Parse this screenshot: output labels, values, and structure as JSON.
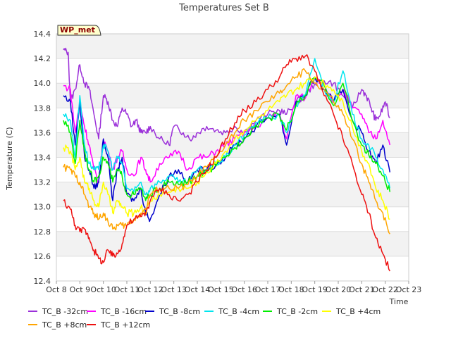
{
  "chart_data": {
    "type": "line",
    "title": "Temperatures Set B",
    "xlabel": "Time",
    "ylabel": "Temperature (C)",
    "ylim": [
      12.4,
      14.4
    ],
    "xlim": [
      8,
      23
    ],
    "yticks": [
      "12.4",
      "12.6",
      "12.8",
      "13.0",
      "13.2",
      "13.4",
      "13.6",
      "13.8",
      "14.0",
      "14.2",
      "14.4"
    ],
    "xticks": [
      "Oct 8",
      "Oct 9",
      "Oct 10",
      "Oct 11",
      "Oct 12",
      "Oct 13",
      "Oct 14",
      "Oct 15",
      "Oct 16",
      "Oct 17",
      "Oct 18",
      "Oct 19",
      "Oct 20",
      "Oct 21",
      "Oct 22",
      "Oct 23"
    ],
    "x_unit": "day of October",
    "grid": true,
    "legend_position": "bottom",
    "badge": "WP_met",
    "series": [
      {
        "name": "TC_B -32cm",
        "color": "#9b30d9",
        "x": [
          8.3,
          8.5,
          8.6,
          8.8,
          9.0,
          9.2,
          9.4,
          9.6,
          9.8,
          10.0,
          10.2,
          10.4,
          10.6,
          10.8,
          11.0,
          11.2,
          11.4,
          11.6,
          11.8,
          12.0,
          12.4,
          12.8,
          13.0,
          13.4,
          13.8,
          14.0,
          14.4,
          14.8,
          15.2,
          15.6,
          16.0,
          16.5,
          17.0,
          17.5,
          17.8,
          18.2,
          18.6,
          19.0,
          19.4,
          19.8,
          20.2,
          20.6,
          21.0,
          21.2,
          21.4,
          21.6,
          21.8,
          22.0,
          22.2
        ],
        "y": [
          14.27,
          14.25,
          13.85,
          13.95,
          14.15,
          14.0,
          13.95,
          13.75,
          13.55,
          13.9,
          13.85,
          13.7,
          13.65,
          13.8,
          13.75,
          13.65,
          13.7,
          13.6,
          13.6,
          13.65,
          13.55,
          13.5,
          13.65,
          13.6,
          13.55,
          13.6,
          13.65,
          13.62,
          13.6,
          13.65,
          13.6,
          13.7,
          13.75,
          13.78,
          13.75,
          13.85,
          13.9,
          14.0,
          14.02,
          14.0,
          13.9,
          13.8,
          13.95,
          13.9,
          13.8,
          13.7,
          13.75,
          13.85,
          13.72
        ]
      },
      {
        "name": "TC_B -16cm",
        "color": "#ff00ff",
        "x": [
          8.3,
          8.6,
          8.8,
          9.0,
          9.2,
          9.4,
          9.6,
          9.8,
          10.0,
          10.2,
          10.4,
          10.6,
          10.8,
          11.0,
          11.3,
          11.6,
          11.8,
          12.0,
          12.4,
          12.8,
          13.2,
          13.6,
          14.0,
          14.4,
          14.8,
          15.2,
          15.6,
          16.0,
          16.5,
          17.0,
          17.5,
          17.8,
          18.2,
          18.6,
          19.0,
          19.4,
          19.8,
          20.2,
          20.6,
          21.0,
          21.3,
          21.6,
          21.9,
          22.2
        ],
        "y": [
          13.98,
          13.95,
          13.6,
          13.85,
          13.65,
          13.5,
          13.3,
          13.2,
          13.55,
          13.45,
          13.3,
          13.4,
          13.45,
          13.3,
          13.25,
          13.4,
          13.3,
          13.2,
          13.35,
          13.4,
          13.45,
          13.3,
          13.4,
          13.4,
          13.45,
          13.5,
          13.55,
          13.6,
          13.65,
          13.72,
          13.75,
          13.55,
          13.9,
          13.88,
          14.05,
          14.0,
          13.85,
          13.95,
          13.8,
          13.75,
          13.6,
          13.55,
          13.7,
          13.5
        ]
      },
      {
        "name": "TC_B -8cm",
        "color": "#0000cc",
        "x": [
          8.3,
          8.6,
          8.8,
          9.0,
          9.2,
          9.4,
          9.6,
          9.8,
          10.0,
          10.2,
          10.4,
          10.6,
          10.8,
          11.0,
          11.3,
          11.6,
          11.8,
          12.0,
          12.4,
          12.8,
          13.2,
          13.6,
          14.0,
          14.4,
          14.8,
          15.2,
          15.6,
          16.0,
          16.5,
          17.0,
          17.5,
          17.8,
          18.2,
          18.6,
          19.0,
          19.4,
          19.8,
          20.2,
          20.6,
          21.0,
          21.3,
          21.6,
          21.9,
          22.2
        ],
        "y": [
          13.9,
          13.85,
          13.5,
          13.85,
          13.4,
          13.3,
          13.15,
          13.2,
          13.55,
          13.4,
          13.05,
          13.3,
          13.4,
          13.1,
          13.05,
          13.15,
          12.95,
          12.9,
          13.1,
          13.25,
          13.3,
          13.2,
          13.3,
          13.3,
          13.35,
          13.4,
          13.5,
          13.55,
          13.65,
          13.72,
          13.75,
          13.5,
          13.85,
          13.9,
          14.05,
          13.95,
          13.85,
          13.95,
          13.7,
          13.6,
          13.45,
          13.35,
          13.5,
          13.28
        ]
      },
      {
        "name": "TC_B -4cm",
        "color": "#00e5ee",
        "x": [
          8.3,
          8.6,
          8.8,
          9.0,
          9.2,
          9.4,
          9.6,
          9.8,
          10.0,
          10.2,
          10.4,
          10.6,
          10.8,
          11.0,
          11.3,
          11.6,
          11.8,
          12.0,
          12.4,
          12.8,
          13.2,
          13.6,
          14.0,
          14.4,
          14.8,
          15.2,
          15.6,
          16.0,
          16.5,
          17.0,
          17.5,
          17.8,
          18.2,
          18.6,
          19.0,
          19.4,
          19.8,
          20.2,
          20.6,
          21.0,
          21.3,
          21.6,
          21.9,
          22.2
        ],
        "y": [
          13.75,
          13.7,
          13.4,
          13.9,
          13.5,
          13.35,
          13.3,
          13.3,
          13.5,
          13.45,
          13.3,
          13.4,
          13.35,
          13.15,
          13.12,
          13.2,
          13.1,
          13.15,
          13.2,
          13.25,
          13.2,
          13.2,
          13.3,
          13.3,
          13.35,
          13.4,
          13.5,
          13.58,
          13.68,
          13.72,
          13.74,
          13.6,
          13.82,
          13.9,
          14.2,
          13.95,
          13.85,
          14.1,
          13.75,
          13.55,
          13.5,
          13.4,
          13.3,
          13.15
        ]
      },
      {
        "name": "TC_B -2cm",
        "color": "#00ee00",
        "x": [
          8.3,
          8.6,
          8.8,
          9.0,
          9.2,
          9.4,
          9.6,
          9.8,
          10.0,
          10.2,
          10.4,
          10.6,
          10.8,
          11.0,
          11.3,
          11.6,
          11.8,
          12.0,
          12.4,
          12.8,
          13.2,
          13.6,
          14.0,
          14.4,
          14.8,
          15.2,
          15.6,
          16.0,
          16.5,
          17.0,
          17.5,
          17.8,
          18.2,
          18.6,
          19.0,
          19.4,
          19.8,
          20.2,
          20.6,
          21.0,
          21.3,
          21.6,
          21.9,
          22.2
        ],
        "y": [
          13.7,
          13.6,
          13.35,
          13.7,
          13.45,
          13.3,
          13.2,
          13.25,
          13.4,
          13.35,
          13.2,
          13.3,
          13.25,
          13.1,
          13.1,
          13.15,
          13.05,
          13.1,
          13.15,
          13.2,
          13.18,
          13.2,
          13.25,
          13.28,
          13.33,
          13.4,
          13.48,
          13.56,
          13.66,
          13.72,
          13.74,
          13.62,
          13.82,
          13.9,
          14.05,
          13.98,
          13.82,
          14.0,
          13.7,
          13.5,
          13.42,
          13.35,
          13.25,
          13.12
        ]
      },
      {
        "name": "TC_B +4cm",
        "color": "#ffff00",
        "x": [
          8.3,
          8.6,
          8.8,
          9.0,
          9.2,
          9.4,
          9.6,
          9.8,
          10.0,
          10.2,
          10.4,
          10.6,
          10.8,
          11.0,
          11.3,
          11.6,
          11.8,
          12.0,
          12.4,
          12.8,
          13.2,
          13.6,
          14.0,
          14.4,
          14.8,
          15.2,
          15.6,
          16.0,
          16.5,
          17.0,
          17.5,
          17.8,
          18.2,
          18.6,
          19.0,
          19.4,
          19.8,
          20.2,
          20.6,
          21.0,
          21.3,
          21.6,
          21.9,
          22.2
        ],
        "y": [
          13.48,
          13.45,
          13.3,
          13.4,
          13.2,
          13.15,
          13.05,
          13.0,
          13.2,
          13.1,
          12.95,
          13.05,
          13.0,
          12.95,
          12.95,
          13.0,
          12.95,
          13.05,
          13.1,
          13.12,
          13.15,
          13.15,
          13.2,
          13.28,
          13.35,
          13.45,
          13.55,
          13.62,
          13.7,
          13.78,
          13.85,
          13.9,
          13.95,
          14.0,
          14.05,
          14.0,
          13.95,
          13.85,
          13.65,
          13.45,
          13.35,
          13.15,
          13.05,
          12.9
        ]
      },
      {
        "name": "TC_B +8cm",
        "color": "#ffa500",
        "x": [
          8.3,
          8.6,
          8.8,
          9.0,
          9.2,
          9.4,
          9.6,
          9.8,
          10.0,
          10.2,
          10.4,
          10.6,
          10.8,
          11.0,
          11.3,
          11.6,
          11.8,
          12.0,
          12.4,
          12.8,
          13.2,
          13.6,
          14.0,
          14.4,
          14.8,
          15.2,
          15.6,
          16.0,
          16.5,
          17.0,
          17.5,
          17.8,
          18.2,
          18.6,
          19.0,
          19.4,
          19.8,
          20.2,
          20.6,
          21.0,
          21.3,
          21.6,
          21.9,
          22.2
        ],
        "y": [
          13.32,
          13.3,
          13.25,
          13.2,
          13.1,
          13.0,
          12.95,
          12.9,
          12.95,
          12.88,
          12.82,
          12.85,
          12.85,
          12.85,
          12.9,
          12.95,
          12.98,
          13.1,
          13.15,
          13.15,
          13.15,
          13.18,
          13.25,
          13.32,
          13.4,
          13.5,
          13.6,
          13.7,
          13.78,
          13.85,
          13.92,
          13.98,
          14.05,
          14.1,
          14.0,
          13.95,
          13.85,
          13.75,
          13.55,
          13.35,
          13.2,
          13.05,
          12.95,
          12.78
        ]
      },
      {
        "name": "TC_B +12cm",
        "color": "#ee1111",
        "x": [
          8.3,
          8.6,
          8.8,
          9.0,
          9.2,
          9.4,
          9.6,
          9.8,
          10.0,
          10.2,
          10.4,
          10.6,
          10.8,
          11.0,
          11.3,
          11.6,
          11.8,
          12.0,
          12.4,
          12.8,
          13.2,
          13.6,
          14.0,
          14.4,
          14.8,
          15.2,
          15.6,
          16.0,
          16.5,
          17.0,
          17.5,
          17.8,
          18.2,
          18.6,
          19.0,
          19.4,
          19.8,
          20.2,
          20.6,
          21.0,
          21.3,
          21.6,
          21.9,
          22.2
        ],
        "y": [
          13.05,
          12.98,
          12.85,
          12.8,
          12.82,
          12.75,
          12.65,
          12.58,
          12.55,
          12.65,
          12.6,
          12.62,
          12.7,
          12.85,
          12.9,
          12.92,
          12.95,
          13.05,
          13.15,
          13.1,
          13.05,
          13.1,
          13.2,
          13.3,
          13.4,
          13.55,
          13.68,
          13.78,
          13.85,
          13.95,
          14.05,
          14.15,
          14.2,
          14.22,
          14.1,
          13.9,
          13.75,
          13.55,
          13.35,
          13.1,
          12.95,
          12.75,
          12.62,
          12.48
        ]
      }
    ]
  }
}
